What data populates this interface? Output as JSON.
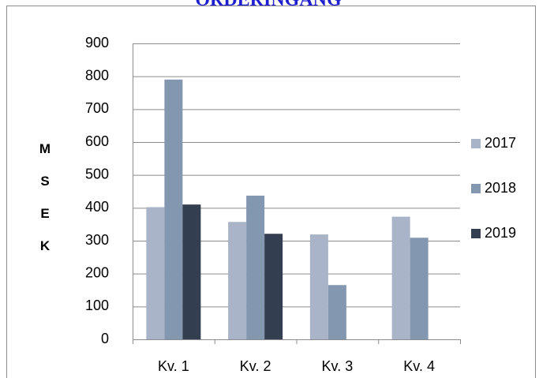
{
  "chart_data": {
    "type": "bar",
    "title": "ORDERINGÅNG",
    "y_label": "MSEK",
    "categories": [
      "Kv. 1",
      "Kv. 2",
      "Kv. 3",
      "Kv. 4"
    ],
    "series": [
      {
        "name": "2017",
        "color": "#a9b4c8",
        "values": [
          402,
          357,
          319,
          373
        ]
      },
      {
        "name": "2018",
        "color": "#8497b0",
        "values": [
          790,
          437,
          165,
          309
        ]
      },
      {
        "name": "2019",
        "color": "#333f50",
        "values": [
          410,
          321,
          null,
          null
        ]
      }
    ],
    "ylim": [
      0,
      900
    ],
    "yticks": [
      0,
      100,
      200,
      300,
      400,
      500,
      600,
      700,
      800,
      900
    ],
    "grid": true,
    "legend": "right"
  }
}
